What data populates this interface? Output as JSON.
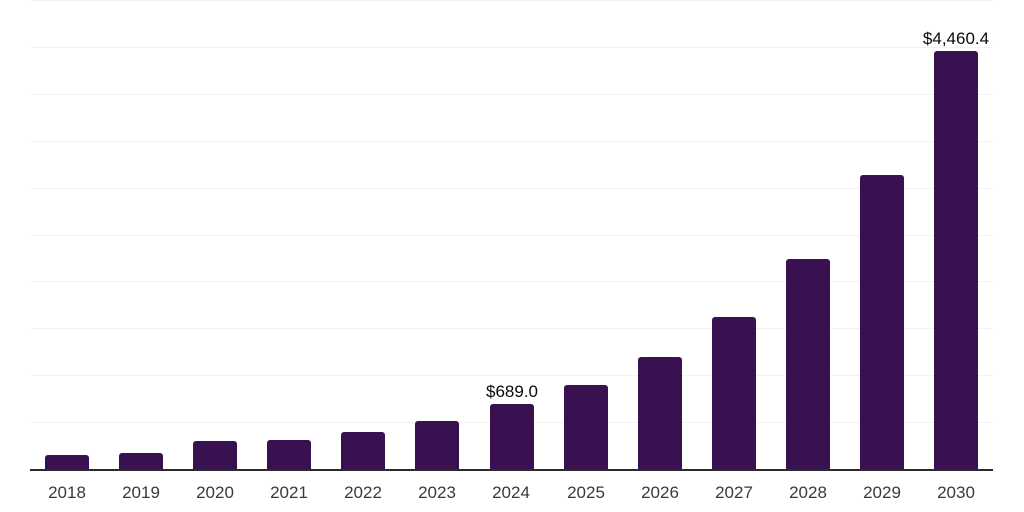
{
  "chart_data": {
    "type": "bar",
    "title": "",
    "xlabel": "",
    "ylabel": "",
    "categories": [
      "2018",
      "2019",
      "2020",
      "2021",
      "2022",
      "2023",
      "2024",
      "2025",
      "2026",
      "2027",
      "2028",
      "2029",
      "2030"
    ],
    "values": [
      155,
      175,
      295,
      310,
      400,
      515,
      689.0,
      895,
      1190,
      1625,
      2240,
      3135,
      4460.4
    ],
    "bar_labels": [
      "",
      "",
      "",
      "",
      "",
      "",
      "$689.0",
      "",
      "",
      "",
      "",
      "",
      "$4,460.4"
    ],
    "ylim": [
      0,
      5000
    ],
    "gridline_step": 500,
    "grid": "horizontal",
    "y_axis_tick_labels_visible": false,
    "legend_position": "none",
    "colors": {
      "bar": "#3A1150",
      "axis_line": "#2B2B2B",
      "gridline": "#F2F2F4",
      "tick_label": "#3A3A3A",
      "value_label": "#0A0A0A",
      "background": "#FFFFFF"
    }
  }
}
